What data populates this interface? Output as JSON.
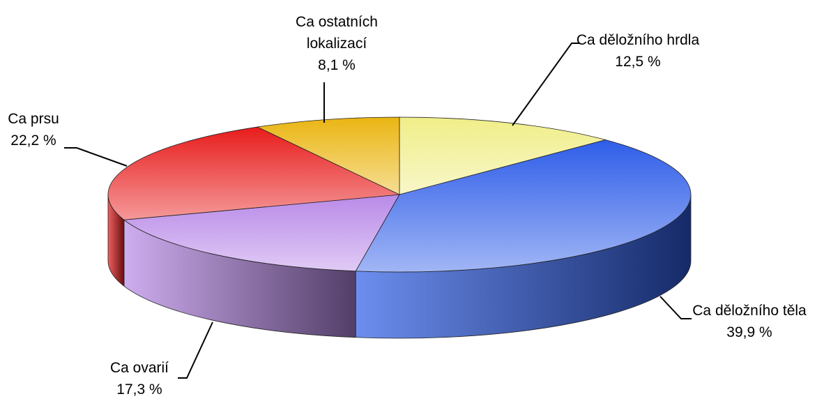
{
  "chart_data": {
    "type": "pie",
    "categories": [
      "Ca děložního hrdla",
      "Ca děložního těla",
      "Ca ovarií",
      "Ca prsu",
      "Ca ostatních lokalizací"
    ],
    "values": [
      12.5,
      39.9,
      17.3,
      22.2,
      8.1
    ],
    "value_labels": [
      "12,5 %",
      "39,9 %",
      "17,3 %",
      "22,2 %",
      "8,1 %"
    ],
    "colors": [
      "#f0ee88",
      "#2e5de8",
      "#b98ae8",
      "#e81c1c",
      "#eab512"
    ]
  }
}
